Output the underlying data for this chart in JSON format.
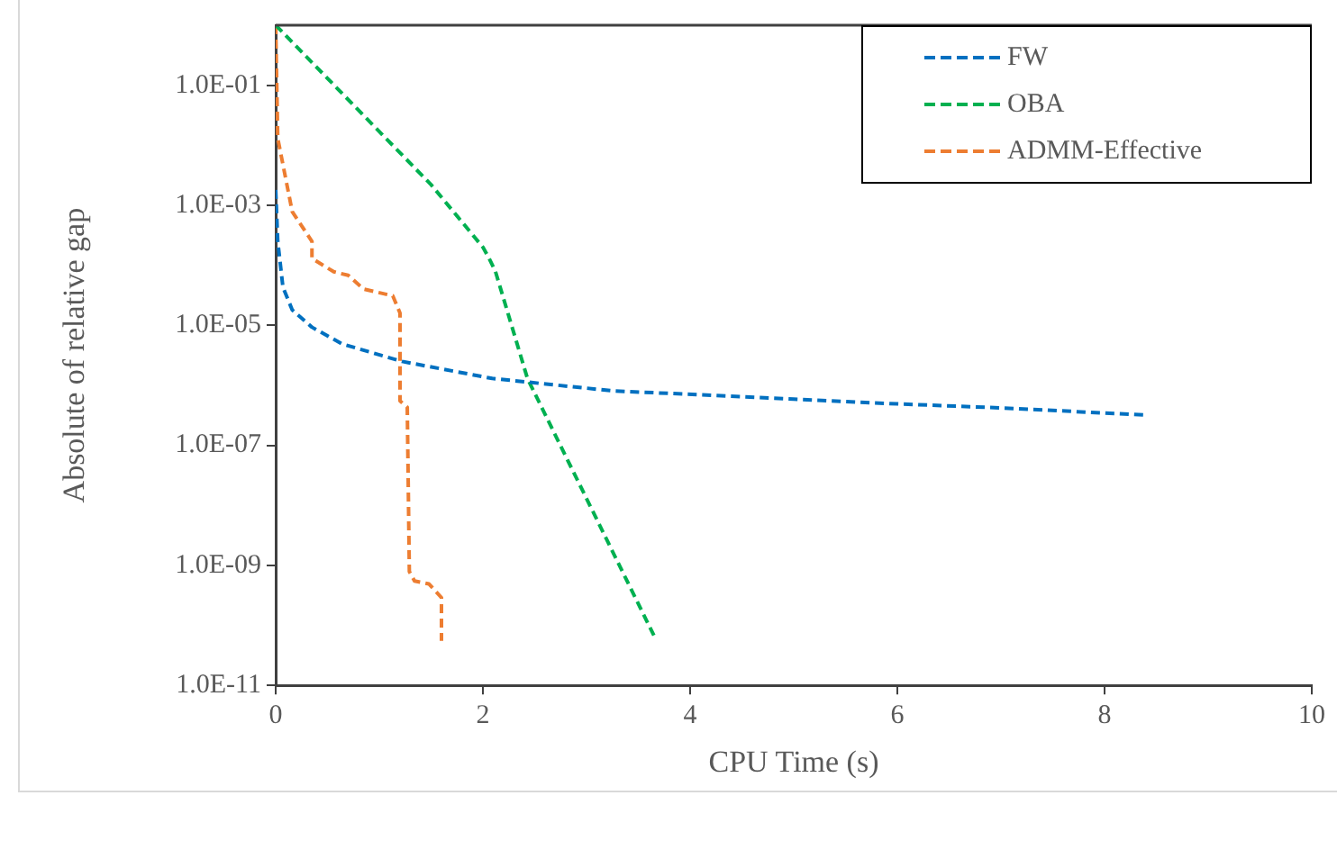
{
  "chart_data": {
    "type": "line",
    "xlabel": "CPU Time (s)",
    "ylabel": "Absolute of relative gap",
    "log": "y",
    "grid": false,
    "legend": "top right",
    "marker": "none",
    "line_style": "dashed",
    "xlim": [
      0,
      10
    ],
    "xticks": [
      0,
      2,
      4,
      6,
      8,
      10
    ],
    "ylim": [
      1e-11,
      1
    ],
    "yticks": [
      {
        "value": 1e-11,
        "label": "1.0E-11"
      },
      {
        "value": 1e-09,
        "label": "1.0E-09"
      },
      {
        "value": 1e-07,
        "label": "1.0E-07"
      },
      {
        "value": 1e-05,
        "label": "1.0E-05"
      },
      {
        "value": 0.001,
        "label": "1.0E-03"
      },
      {
        "value": 0.1,
        "label": "1.0E-01"
      }
    ],
    "series": [
      {
        "name": "FW",
        "color": "#0070c0",
        "x": [
          0,
          0.02,
          0.07,
          0.16,
          0.35,
          0.64,
          1.22,
          2.09,
          3.25,
          5.0,
          6.0,
          7.0,
          8.4
        ],
        "values": [
          0.0018,
          0.00025,
          4.3e-05,
          1.8e-05,
          9.3e-06,
          4.9e-06,
          2.5e-06,
          1.3e-06,
          8.1e-07,
          5.9e-07,
          4.9e-07,
          4.2e-07,
          3.2e-07
        ]
      },
      {
        "name": "OBA",
        "color": "#00b050",
        "x": [
          0,
          1.5,
          2.0,
          2.06,
          2.12,
          2.43,
          3.65
        ],
        "values": [
          1,
          0.0022,
          0.0002,
          0.00013,
          8e-05,
          1.3e-06,
          6.8e-11
        ]
      },
      {
        "name": "ADMM-Effective",
        "color": "#ed7d31",
        "x": [
          0,
          0.02,
          0.16,
          0.35,
          0.35,
          0.56,
          0.7,
          0.85,
          1.13,
          1.2,
          1.2,
          1.27,
          1.29,
          1.34,
          1.48,
          1.6,
          1.6
        ],
        "values": [
          1,
          0.013,
          0.00078,
          0.00025,
          0.00013,
          7.8e-05,
          6.8e-05,
          4e-05,
          3.1e-05,
          1.6e-05,
          5.5e-07,
          4.3e-07,
          7.9e-10,
          5.5e-10,
          4.9e-10,
          2.9e-10,
          5.5e-11
        ]
      }
    ]
  }
}
